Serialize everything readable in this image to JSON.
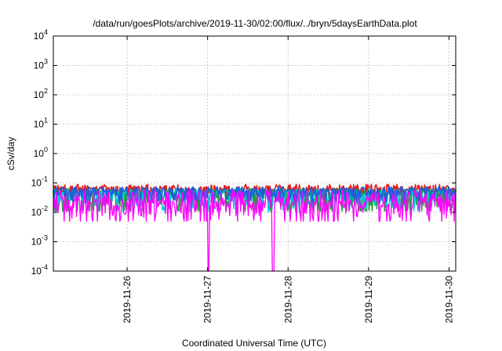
{
  "chart_data": {
    "type": "line",
    "title": "/data/run/goesPlots/archive/2019-11-30/02:00/flux/../bryn/5daysEarthData.plot",
    "xlabel": "Coordinated Universal Time (UTC)",
    "ylabel": "cSv/day",
    "yscale": "log",
    "ylim": [
      0.0001,
      10000
    ],
    "xlim": [
      "2019-11-25T02:00",
      "2019-11-30T02:00"
    ],
    "grid": true,
    "legend": "none",
    "x_ticks": [
      "2019-11-26",
      "2019-11-27",
      "2019-11-28",
      "2019-11-29",
      "2019-11-30"
    ],
    "y_ticks": [
      {
        "value": 0.0001,
        "base": "10",
        "exp": "-4"
      },
      {
        "value": 0.001,
        "base": "10",
        "exp": "-3"
      },
      {
        "value": 0.01,
        "base": "10",
        "exp": "-2"
      },
      {
        "value": 0.1,
        "base": "10",
        "exp": "-1"
      },
      {
        "value": 1,
        "base": "10",
        "exp": "0"
      },
      {
        "value": 10,
        "base": "10",
        "exp": "1"
      },
      {
        "value": 100,
        "base": "10",
        "exp": "2"
      },
      {
        "value": 1000,
        "base": "10",
        "exp": "3"
      },
      {
        "value": 10000,
        "base": "10",
        "exp": "4"
      }
    ],
    "series": [
      {
        "color": "#e31a1c",
        "base": 0.06,
        "spread_hi": 0.03,
        "spread_lo": 0.02
      },
      {
        "color": "#1f9e3a",
        "base": 0.045,
        "spread_hi": 0.02,
        "spread_lo": 0.03
      },
      {
        "color": "#00c8d8",
        "base": 0.04,
        "spread_hi": 0.02,
        "spread_lo": 0.02
      },
      {
        "color": "#1e5fd8",
        "base": 0.05,
        "spread_hi": 0.025,
        "spread_lo": 0.02
      },
      {
        "color": "#ff00ff",
        "base": 0.02,
        "spread_hi": 0.04,
        "spread_lo": 0.013,
        "dips": [
          "2019-11-27T00:15",
          "2019-11-27T19:30"
        ]
      }
    ]
  }
}
